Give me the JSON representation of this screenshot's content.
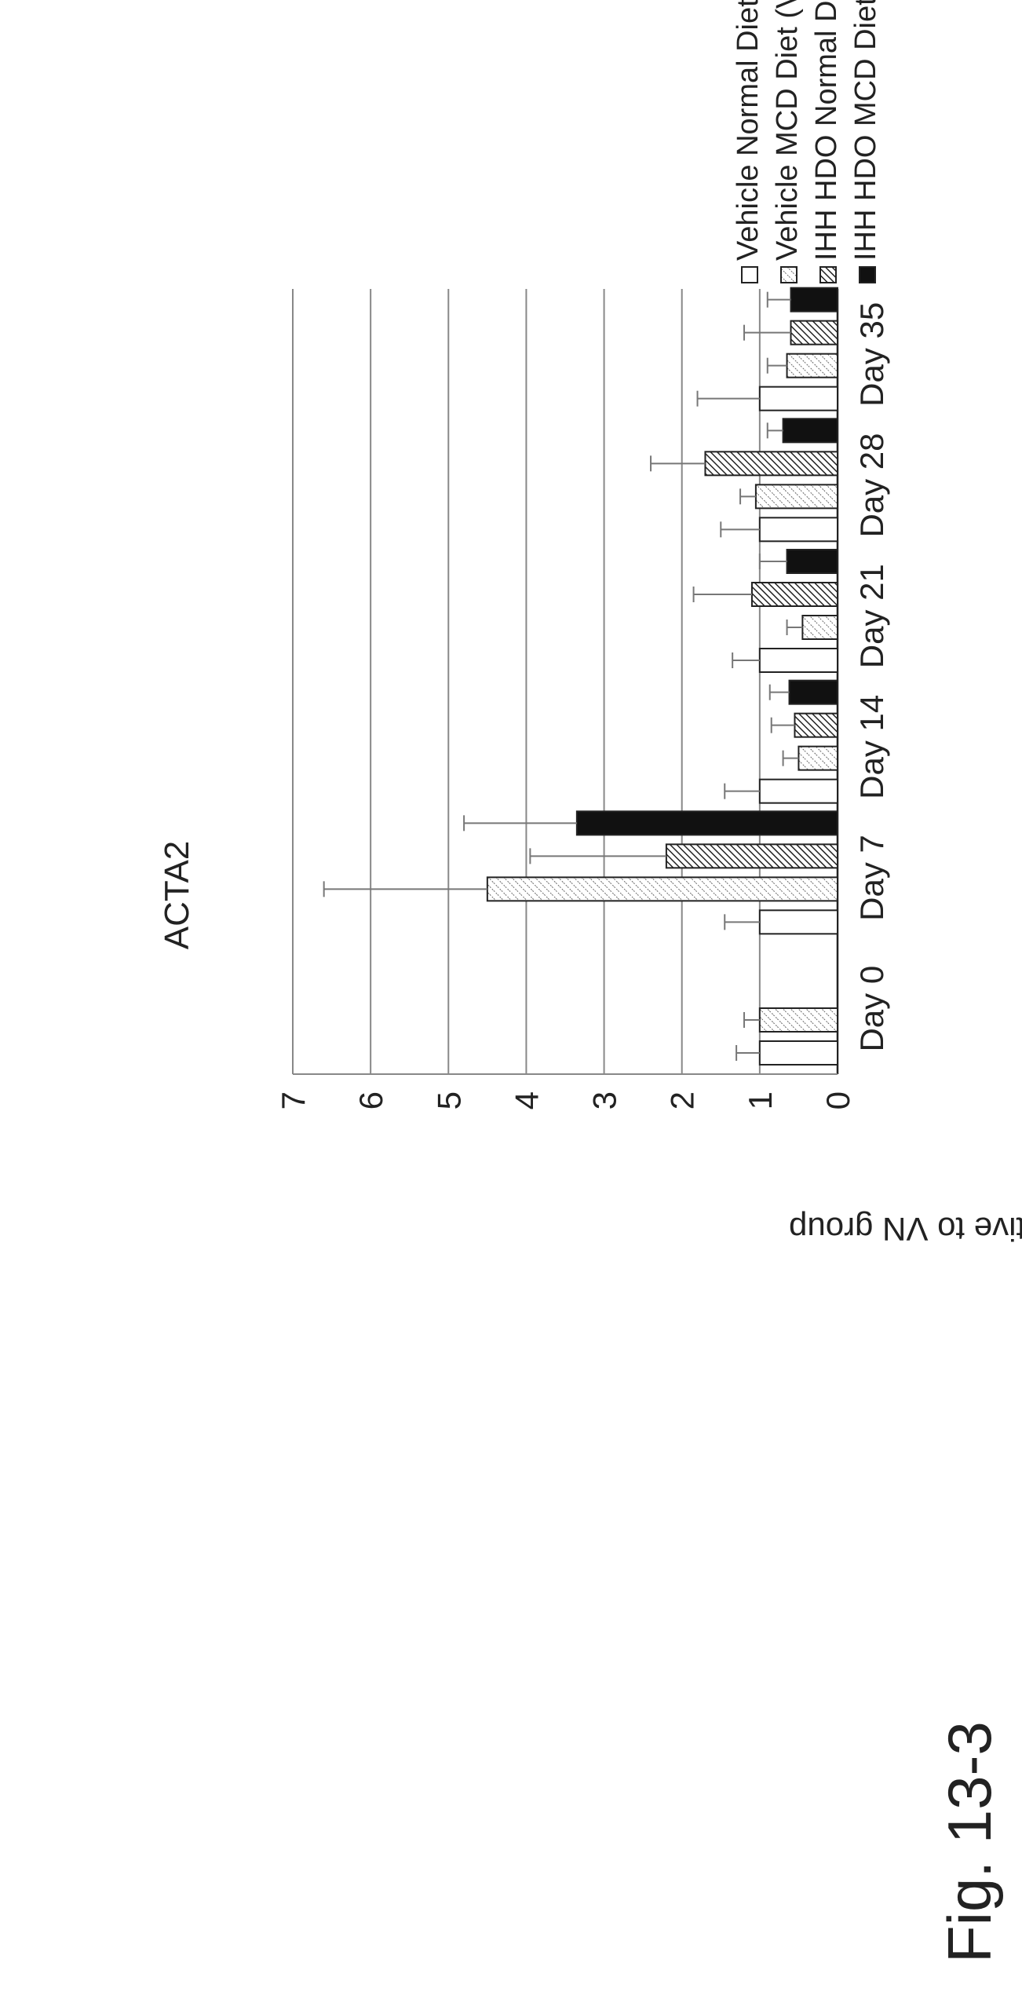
{
  "figure_label": "Fig. 13-3",
  "chart_data": {
    "type": "bar",
    "title": "ACTA2",
    "ylabel": "Change relative to VN group",
    "xlabel": "",
    "ylim": [
      0,
      7
    ],
    "yticks": [
      "0",
      "1",
      "2",
      "3",
      "4",
      "5",
      "6",
      "7"
    ],
    "grid": true,
    "legend_position": "right",
    "categories": [
      "Day 0",
      "Day 7",
      "Day 14",
      "Day 21",
      "Day 28",
      "Day 35"
    ],
    "series": [
      {
        "name": "Vehicle Normal Diet (VN group)",
        "pattern": "white",
        "values": [
          1.0,
          1.0,
          1.0,
          1.0,
          1.0,
          1.0
        ],
        "errors": [
          0.3,
          0.45,
          0.45,
          0.35,
          0.5,
          0.8
        ]
      },
      {
        "name": "Vehicle MCD Diet (VM group)",
        "pattern": "light-hatch",
        "values": [
          1.0,
          4.5,
          0.5,
          0.45,
          1.05,
          0.65
        ],
        "errors": [
          0.2,
          2.1,
          0.2,
          0.2,
          0.2,
          0.25
        ]
      },
      {
        "name": "IHH HDO Normal Diet (IN group)",
        "pattern": "dense-hatch",
        "values": [
          null,
          2.2,
          0.55,
          1.1,
          1.7,
          0.6
        ],
        "errors": [
          null,
          1.75,
          0.3,
          0.75,
          0.7,
          0.6
        ]
      },
      {
        "name": "IHH HDO MCD Diet (IM group)",
        "pattern": "solid-black",
        "values": [
          null,
          3.35,
          0.62,
          0.65,
          0.7,
          0.6
        ],
        "errors": [
          null,
          1.45,
          0.25,
          0.35,
          0.2,
          0.3
        ]
      }
    ]
  }
}
